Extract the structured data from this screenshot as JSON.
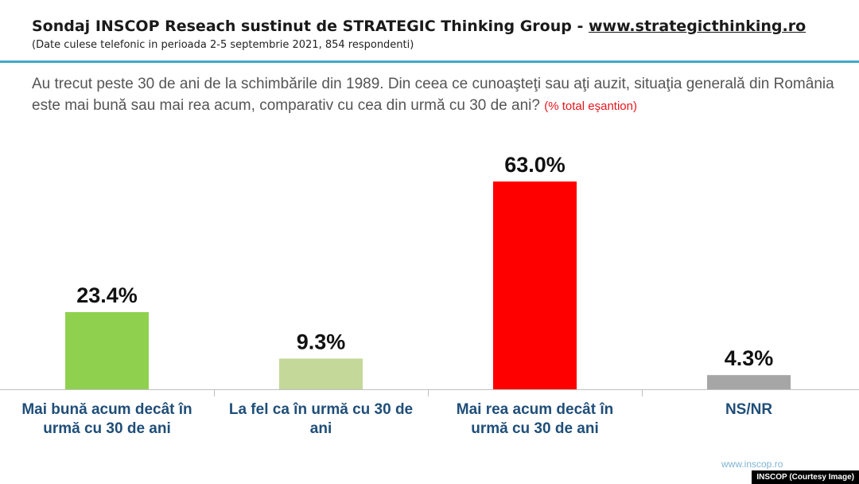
{
  "header": {
    "title": "Sondaj INSCOP Reseach sustinut de STRATEGIC Thinking Group - ",
    "title_link": "www.strategicthinking.ro",
    "subtitle": "(Date culese telefonic in perioada 2-5 septembrie 2021, 854 respondenti)"
  },
  "question": {
    "text": "Au trecut peste 30 de ani de la schimbările din 1989. Din ceea ce cunoaşteţi sau aţi auzit, situaţia generală din România este mai bună sau mai rea acum, comparativ cu cea din urmă cu 30 de ani?",
    "note": "(% total eşantion)"
  },
  "chart_data": {
    "type": "bar",
    "categories": [
      [
        "Mai bună acum decât în",
        "urmă cu 30 de ani"
      ],
      [
        "La fel ca în urmă cu 30 de",
        "ani"
      ],
      [
        "Mai rea acum decât în",
        "urmă cu 30 de ani"
      ],
      [
        "NS/NR"
      ]
    ],
    "values": [
      23.4,
      9.3,
      63.0,
      4.3
    ],
    "value_labels": [
      "23.4%",
      "9.3%",
      "63.0%",
      "4.3%"
    ],
    "colors": [
      "#8fd14f",
      "#c4d89a",
      "#ff0000",
      "#a6a6a6"
    ],
    "ylim": [
      0,
      70
    ],
    "grid": false
  },
  "footer": {
    "url": "www.inscop.ro",
    "credit": "INSCOP (Courtesy Image)"
  }
}
